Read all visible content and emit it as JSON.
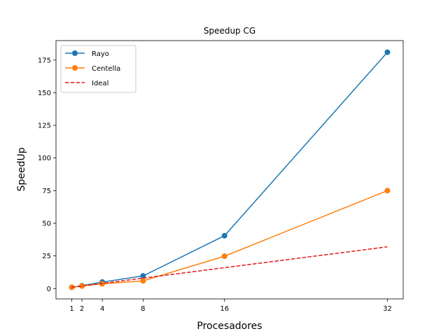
{
  "chart_data": {
    "type": "line",
    "title": "Speedup CG",
    "xlabel": "Procesadores",
    "ylabel": "SpeedUp",
    "x": [
      1,
      2,
      4,
      8,
      16,
      32
    ],
    "xticks": [
      1,
      2,
      4,
      8,
      16,
      32
    ],
    "yticks": [
      0,
      25,
      50,
      75,
      100,
      125,
      150,
      175
    ],
    "xlim": [
      -0.55,
      33.55
    ],
    "ylim": [
      -7.9,
      189.9
    ],
    "grid": false,
    "legend_position": "top-left",
    "series": [
      {
        "name": "Rayo",
        "values": [
          1,
          2.2,
          5,
          9.7,
          40.5,
          181
        ],
        "color": "#1f77b4",
        "style": "solid",
        "marker": "circle"
      },
      {
        "name": "Centella",
        "values": [
          1,
          2,
          3.6,
          5.9,
          24.8,
          75
        ],
        "color": "#ff7f0e",
        "style": "solid",
        "marker": "circle"
      },
      {
        "name": "Ideal",
        "values": [
          1,
          2,
          4,
          8,
          16,
          32
        ],
        "color": "#e31a1c",
        "style": "dashed",
        "marker": "none"
      }
    ]
  }
}
